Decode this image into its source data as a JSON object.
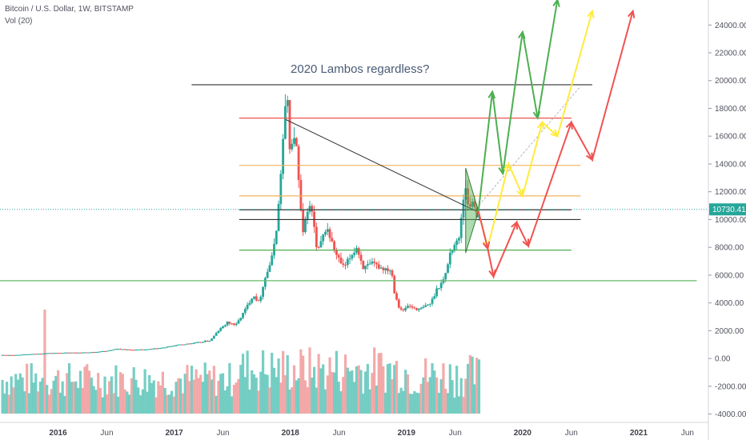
{
  "chart_data": {
    "type": "candlestick",
    "title": "Bitcoin / U.S. Dollar, 1W, BITSTAMP",
    "volume_label": "Vol (20)",
    "annotation": "2020 Lambos regardless?",
    "price_axis": {
      "min": -4600,
      "max": 25800,
      "ticks": [
        24000,
        22000,
        20000,
        18000,
        16000,
        14000,
        12000,
        10000,
        8000,
        6000,
        4000,
        2000,
        0,
        -2000,
        -4000
      ],
      "tick_labels": [
        "24000.00",
        "22000.00",
        "20000.00",
        "18000.00",
        "16000.00",
        "14000.00",
        "12000.00",
        "10000.00",
        "8000.00",
        "6000.00",
        "4000.00",
        "2000.00",
        "0.00",
        "-2000.00",
        "-4000.00"
      ]
    },
    "time_axis": {
      "ticks": [
        {
          "t": 2016.0,
          "label": "2016",
          "year": true
        },
        {
          "t": 2016.42,
          "label": "Jun",
          "year": false
        },
        {
          "t": 2017.0,
          "label": "2017",
          "year": true
        },
        {
          "t": 2017.42,
          "label": "Jun",
          "year": false
        },
        {
          "t": 2018.0,
          "label": "2018",
          "year": true
        },
        {
          "t": 2018.42,
          "label": "Jun",
          "year": false
        },
        {
          "t": 2019.0,
          "label": "2019",
          "year": true
        },
        {
          "t": 2019.42,
          "label": "Jun",
          "year": false
        },
        {
          "t": 2020.0,
          "label": "2020",
          "year": true
        },
        {
          "t": 2020.42,
          "label": "Jun",
          "year": false
        },
        {
          "t": 2021.0,
          "label": "2021",
          "year": true
        },
        {
          "t": 2021.42,
          "label": "Jun",
          "year": false
        }
      ]
    },
    "last_price": 10730.41,
    "last_price_label": "10730.41",
    "price_series": [
      [
        2015.62,
        250
      ],
      [
        2015.9,
        380
      ],
      [
        2016.1,
        420
      ],
      [
        2016.25,
        430
      ],
      [
        2016.4,
        540
      ],
      [
        2016.5,
        700
      ],
      [
        2016.6,
        620
      ],
      [
        2016.75,
        640
      ],
      [
        2016.9,
        780
      ],
      [
        2017.0,
        950
      ],
      [
        2017.1,
        1050
      ],
      [
        2017.2,
        1150
      ],
      [
        2017.3,
        1300
      ],
      [
        2017.37,
        2000
      ],
      [
        2017.45,
        2600
      ],
      [
        2017.52,
        2400
      ],
      [
        2017.6,
        3500
      ],
      [
        2017.67,
        4600
      ],
      [
        2017.72,
        4000
      ],
      [
        2017.76,
        5500
      ],
      [
        2017.83,
        7200
      ],
      [
        2017.88,
        10000
      ],
      [
        2017.92,
        15000
      ],
      [
        2017.96,
        19300
      ],
      [
        2017.99,
        14500
      ],
      [
        2018.03,
        16500
      ],
      [
        2018.07,
        11500
      ],
      [
        2018.1,
        8800
      ],
      [
        2018.14,
        11000
      ],
      [
        2018.18,
        10500
      ],
      [
        2018.22,
        7500
      ],
      [
        2018.26,
        8500
      ],
      [
        2018.3,
        9500
      ],
      [
        2018.34,
        8500
      ],
      [
        2018.38,
        7500
      ],
      [
        2018.45,
        6500
      ],
      [
        2018.52,
        7500
      ],
      [
        2018.56,
        8000
      ],
      [
        2018.62,
        6500
      ],
      [
        2018.7,
        6800
      ],
      [
        2018.78,
        6500
      ],
      [
        2018.86,
        6400
      ],
      [
        2018.88,
        5000
      ],
      [
        2018.92,
        3800
      ],
      [
        2018.96,
        3400
      ],
      [
        2019.0,
        3800
      ],
      [
        2019.1,
        3500
      ],
      [
        2019.2,
        4000
      ],
      [
        2019.25,
        5000
      ],
      [
        2019.32,
        5800
      ],
      [
        2019.36,
        7500
      ],
      [
        2019.4,
        8200
      ],
      [
        2019.44,
        8500
      ],
      [
        2019.47,
        11000
      ],
      [
        2019.5,
        12500
      ],
      [
        2019.53,
        10500
      ],
      [
        2019.56,
        11500
      ],
      [
        2019.6,
        10200
      ],
      [
        2019.62,
        10700
      ]
    ],
    "volume": {
      "colors": [
        "#5fc6ba",
        "#f19b9b"
      ],
      "spike_at": 2015.87
    },
    "horizontal_levels": [
      {
        "price": 19700,
        "t0": 2017.15,
        "t1": 2020.6,
        "color": "#333333"
      },
      {
        "price": 17300,
        "t0": 2017.56,
        "t1": 2020.42,
        "color": "#ef5350"
      },
      {
        "price": 13900,
        "t0": 2017.56,
        "t1": 2020.5,
        "color": "#f6b45c"
      },
      {
        "price": 11700,
        "t0": 2017.56,
        "t1": 2020.5,
        "color": "#f6b45c"
      },
      {
        "price": 10700,
        "t0": 2017.56,
        "t1": 2020.42,
        "color": "#333333"
      },
      {
        "price": 10000,
        "t0": 2017.56,
        "t1": 2020.5,
        "color": "#333333"
      },
      {
        "price": 7800,
        "t0": 2017.56,
        "t1": 2020.42,
        "color": "#4caf50"
      },
      {
        "price": 5600,
        "t0": 2015.5,
        "t1": 2021.5,
        "color": "#66bb6a"
      }
    ],
    "trend_line": {
      "from": [
        2017.96,
        17200
      ],
      "to": [
        2019.6,
        10600
      ],
      "color": "#333333"
    },
    "dotted_trend": {
      "from": [
        2019.58,
        10600
      ],
      "to": [
        2020.5,
        19600
      ],
      "color": "#b0b8c0"
    },
    "triangle": {
      "points": [
        [
          2019.51,
          13700
        ],
        [
          2019.62,
          10600
        ],
        [
          2019.51,
          7600
        ]
      ],
      "fill": "#4caf50"
    },
    "projections": [
      {
        "color": "#4caf50",
        "path": [
          [
            2019.62,
            10600
          ],
          [
            2019.74,
            19200
          ],
          [
            2019.83,
            13300
          ],
          [
            2020.0,
            23500
          ],
          [
            2020.13,
            17300
          ],
          [
            2020.3,
            25800
          ]
        ]
      },
      {
        "color": "#ffeb3b",
        "path": [
          [
            2019.62,
            10600
          ],
          [
            2019.7,
            8000
          ],
          [
            2019.88,
            14000
          ],
          [
            2020.0,
            11700
          ],
          [
            2020.17,
            17000
          ],
          [
            2020.3,
            16000
          ],
          [
            2020.6,
            25000
          ]
        ]
      },
      {
        "color": "#ef5350",
        "path": [
          [
            2019.62,
            10600
          ],
          [
            2019.7,
            7900
          ],
          [
            2019.75,
            5900
          ],
          [
            2019.95,
            9800
          ],
          [
            2020.05,
            8100
          ],
          [
            2020.42,
            17000
          ],
          [
            2020.6,
            14300
          ],
          [
            2020.95,
            25000
          ]
        ]
      }
    ]
  }
}
